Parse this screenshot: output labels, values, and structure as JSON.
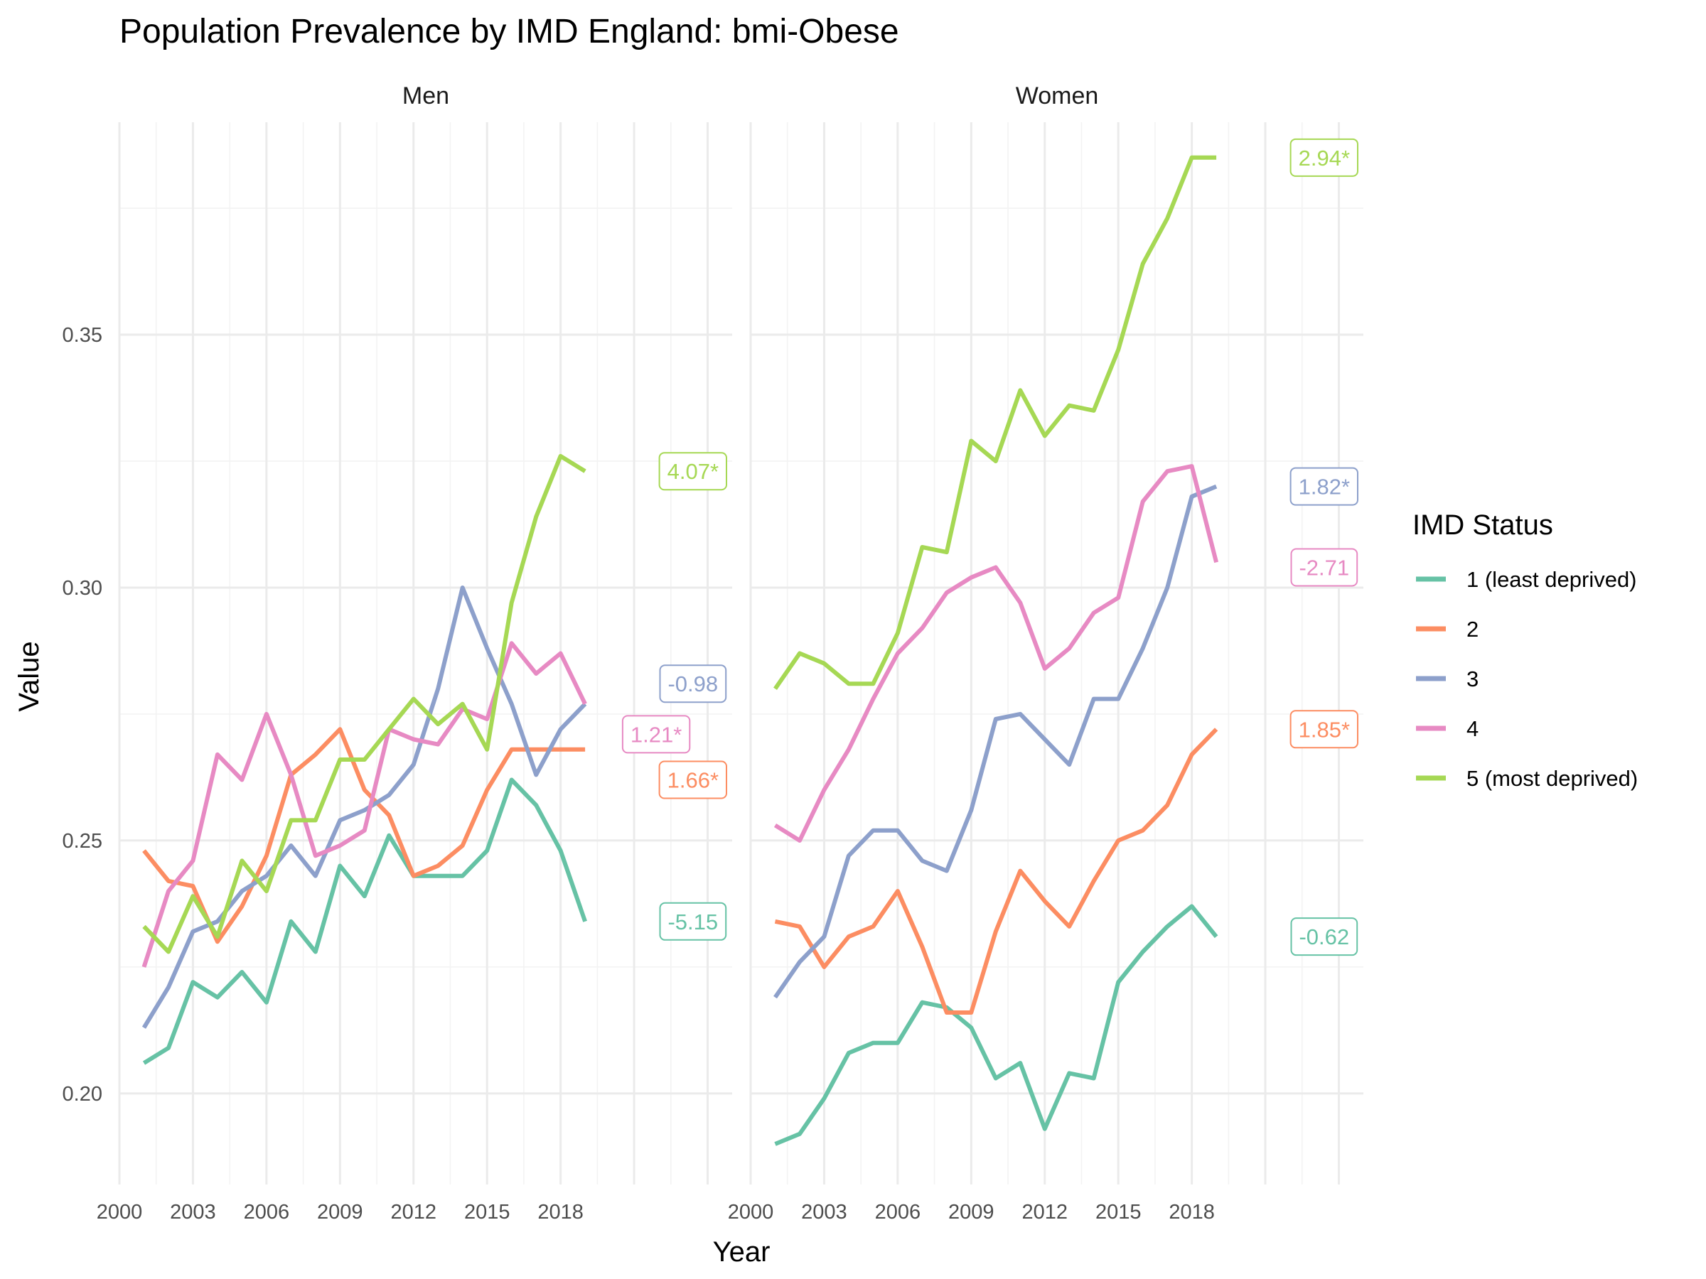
{
  "chart_data": {
    "type": "line",
    "title": "Population Prevalence by IMD England: bmi-Obese",
    "xlabel": "Year",
    "ylabel": "Value",
    "xlim": [
      2000,
      2025
    ],
    "ylim": [
      0.182,
      0.392
    ],
    "x_ticks": [
      2000,
      2003,
      2006,
      2009,
      2012,
      2015,
      2018
    ],
    "x_tick_labels": [
      "2000",
      "2003",
      "2006",
      "2009",
      "2012",
      "2015",
      "2018"
    ],
    "y_ticks": [
      0.2,
      0.25,
      0.3,
      0.35
    ],
    "y_tick_labels": [
      "0.20",
      "0.25",
      "0.30",
      "0.35"
    ],
    "grid": true,
    "legend": {
      "title": "IMD Status",
      "position": "right",
      "entries": [
        "1 (least deprived)",
        "2",
        "3",
        "4",
        "5 (most deprived)"
      ]
    },
    "colors": {
      "1 (least deprived)": "#66c2a5",
      "2": "#fc8d62",
      "3": "#8da0cb",
      "4": "#e78ac3",
      "5 (most deprived)": "#a6d854"
    },
    "x": [
      2001,
      2002,
      2003,
      2004,
      2005,
      2006,
      2007,
      2008,
      2009,
      2010,
      2011,
      2012,
      2013,
      2014,
      2015,
      2016,
      2017,
      2018,
      2019
    ],
    "panels": [
      {
        "name": "Men",
        "series": [
          {
            "name": "1 (least deprived)",
            "values": [
              0.206,
              0.209,
              0.222,
              0.219,
              0.224,
              0.218,
              0.234,
              0.228,
              0.245,
              0.239,
              0.251,
              0.243,
              0.243,
              0.243,
              0.248,
              0.262,
              0.257,
              0.248,
              0.234
            ]
          },
          {
            "name": "2",
            "values": [
              0.248,
              0.242,
              0.241,
              0.23,
              0.237,
              0.247,
              0.263,
              0.267,
              0.272,
              0.26,
              0.255,
              0.243,
              0.245,
              0.249,
              0.26,
              0.268,
              0.268,
              0.268,
              0.268
            ]
          },
          {
            "name": "3",
            "values": [
              0.213,
              0.221,
              0.232,
              0.234,
              0.24,
              0.243,
              0.249,
              0.243,
              0.254,
              0.256,
              0.259,
              0.265,
              0.28,
              0.3,
              0.288,
              0.277,
              0.263,
              0.272,
              0.277
            ]
          },
          {
            "name": "4",
            "values": [
              0.225,
              0.24,
              0.246,
              0.267,
              0.262,
              0.275,
              0.263,
              0.247,
              0.249,
              0.252,
              0.272,
              0.27,
              0.269,
              0.276,
              0.274,
              0.289,
              0.283,
              0.287,
              0.277
            ]
          },
          {
            "name": "5 (most deprived)",
            "values": [
              0.233,
              0.228,
              0.239,
              0.231,
              0.246,
              0.24,
              0.254,
              0.254,
              0.266,
              0.266,
              0.272,
              0.278,
              0.273,
              0.277,
              0.268,
              0.297,
              0.314,
              0.326,
              0.323
            ]
          }
        ],
        "labels": [
          {
            "series": "5 (most deprived)",
            "text": "4.07*",
            "y": 0.323
          },
          {
            "series": "3",
            "text": "-0.98",
            "y": 0.281
          },
          {
            "series": "4",
            "text": "1.21*",
            "y": 0.271
          },
          {
            "series": "2",
            "text": "1.66*",
            "y": 0.262
          },
          {
            "series": "1 (least deprived)",
            "text": "-5.15",
            "y": 0.234
          }
        ]
      },
      {
        "name": "Women",
        "series": [
          {
            "name": "1 (least deprived)",
            "values": [
              0.19,
              0.192,
              0.199,
              0.208,
              0.21,
              0.21,
              0.218,
              0.217,
              0.213,
              0.203,
              0.206,
              0.193,
              0.204,
              0.203,
              0.222,
              0.228,
              0.233,
              0.237,
              0.231
            ]
          },
          {
            "name": "2",
            "values": [
              0.234,
              0.233,
              0.225,
              0.231,
              0.233,
              0.24,
              0.229,
              0.216,
              0.216,
              0.232,
              0.244,
              0.238,
              0.233,
              0.242,
              0.25,
              0.252,
              0.257,
              0.267,
              0.272
            ]
          },
          {
            "name": "3",
            "values": [
              0.219,
              0.226,
              0.231,
              0.247,
              0.252,
              0.252,
              0.246,
              0.244,
              0.256,
              0.274,
              0.275,
              0.27,
              0.265,
              0.278,
              0.278,
              0.288,
              0.3,
              0.318,
              0.32
            ]
          },
          {
            "name": "4",
            "values": [
              0.253,
              0.25,
              0.26,
              0.268,
              0.278,
              0.287,
              0.292,
              0.299,
              0.302,
              0.304,
              0.297,
              0.284,
              0.288,
              0.295,
              0.298,
              0.317,
              0.323,
              0.324,
              0.305
            ]
          },
          {
            "name": "5 (most deprived)",
            "values": [
              0.28,
              0.287,
              0.285,
              0.281,
              0.281,
              0.291,
              0.308,
              0.307,
              0.329,
              0.325,
              0.339,
              0.33,
              0.336,
              0.335,
              0.347,
              0.364,
              0.373,
              0.385,
              0.385
            ]
          }
        ],
        "labels": [
          {
            "series": "5 (most deprived)",
            "text": "2.94*",
            "y": 0.385
          },
          {
            "series": "3",
            "text": "1.82*",
            "y": 0.32
          },
          {
            "series": "4",
            "text": "-2.71",
            "y": 0.304
          },
          {
            "series": "2",
            "text": "1.85*",
            "y": 0.272
          },
          {
            "series": "1 (least deprived)",
            "text": "-0.62",
            "y": 0.231
          }
        ]
      }
    ]
  }
}
